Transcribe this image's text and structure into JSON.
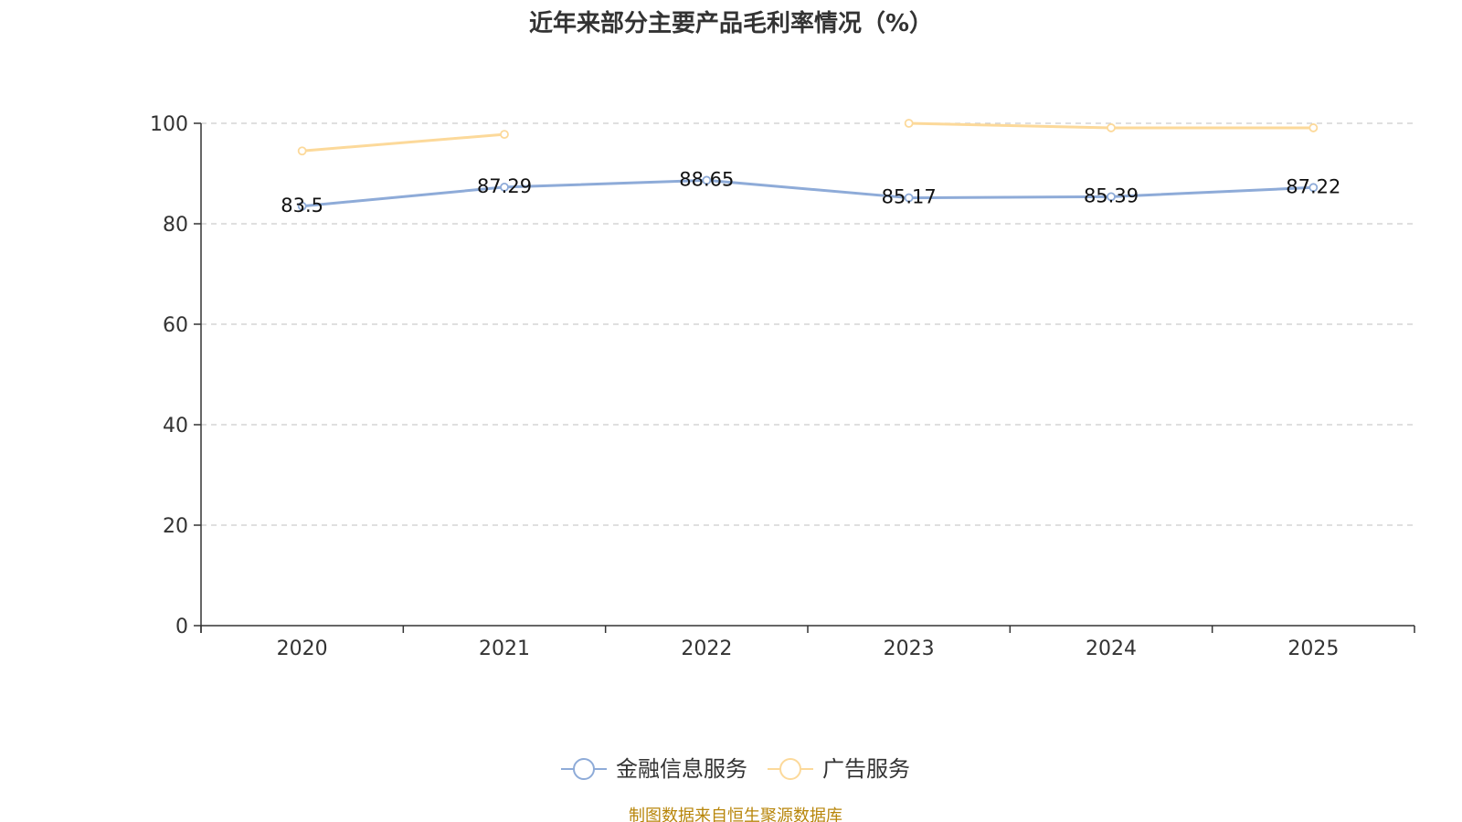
{
  "chart_data": {
    "type": "line",
    "title": "近年来部分主要产品毛利率情况（%）",
    "categories": [
      "2020",
      "2021",
      "2022",
      "2023",
      "2024",
      "2025"
    ],
    "ylim": [
      0,
      100
    ],
    "yticks": [
      "0",
      "20",
      "40",
      "60",
      "80",
      "100"
    ],
    "grid": true,
    "legend_position": "bottom",
    "series": [
      {
        "name": "金融信息服务",
        "color": "#8eabd8",
        "values": [
          83.5,
          87.29,
          88.65,
          85.17,
          85.39,
          87.22
        ],
        "labels": [
          "83.5",
          "87.29",
          "88.65",
          "85.17",
          "85.39",
          "87.22"
        ]
      },
      {
        "name": "广告服务",
        "color": "#fcd99a",
        "values": [
          94.5,
          97.8,
          null,
          100,
          99.1,
          99.1
        ],
        "labels": []
      }
    ],
    "source_note": "制图数据来自恒生聚源数据库"
  }
}
